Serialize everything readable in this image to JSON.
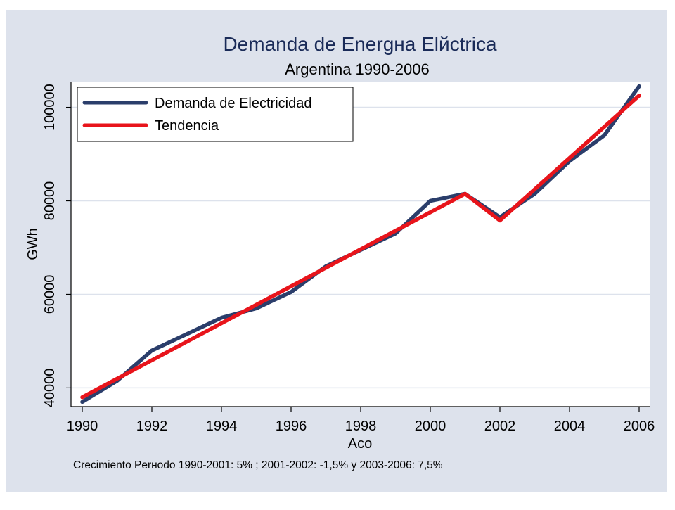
{
  "chart_data": {
    "type": "line",
    "title": "Demanda de Energнa Elйctrica",
    "subtitle": "Argentina 1990-2006",
    "xlabel": "Aco",
    "ylabel": "GWh",
    "note": "Crecimiento Perнodo 1990-2001: 5%  ;  2001-2002: -1,5%  y  2003-2006: 7,5%",
    "xlim": [
      1990,
      2006
    ],
    "ylim": [
      36000,
      105500
    ],
    "xticks": [
      "1990",
      "1992",
      "1994",
      "1996",
      "1998",
      "2000",
      "2002",
      "2004",
      "2006"
    ],
    "yticks": [
      "40000",
      "60000",
      "80000",
      "100000"
    ],
    "grid": true,
    "legend_position": "top-left",
    "x": [
      1990,
      1991,
      1992,
      1993,
      1994,
      1995,
      1996,
      1997,
      1998,
      1999,
      2000,
      2001,
      2002,
      2003,
      2004,
      2005,
      2006
    ],
    "series": [
      {
        "name": "Demanda de Electricidad",
        "color": "#2b3e6b",
        "values": [
          37000,
          41500,
          48000,
          51500,
          55000,
          57000,
          60500,
          66000,
          69500,
          73000,
          80000,
          81500,
          76500,
          81500,
          88500,
          94000,
          104500
        ]
      },
      {
        "name": "Tendencia",
        "color": "#e8141b",
        "x": [
          1990,
          2001,
          2002,
          2006
        ],
        "values": [
          38000,
          81500,
          75800,
          102500
        ]
      }
    ]
  },
  "colors": {
    "background": "#dde2ec",
    "plot_background": "#ffffff",
    "grid": "#dde2ec",
    "title": "#1a2b58",
    "text": "#000000"
  }
}
